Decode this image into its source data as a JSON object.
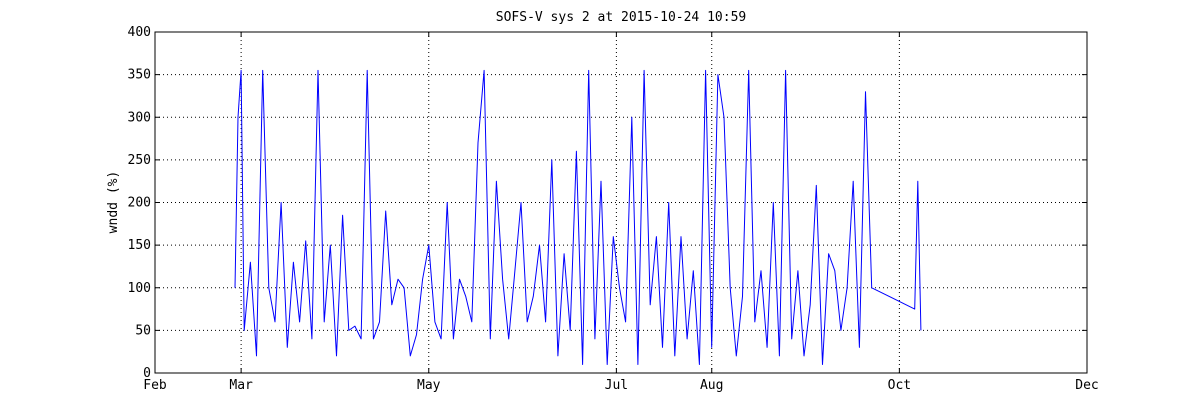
{
  "chart_data": {
    "type": "line",
    "title": "SOFS-V sys 2 at 2015-10-24 10:59",
    "xlabel": "",
    "ylabel": "wndd (%)",
    "ylim": [
      0,
      400
    ],
    "yticks": [
      0,
      50,
      100,
      150,
      200,
      250,
      300,
      350,
      400
    ],
    "xlim": [
      "2015-02-01",
      "2015-12-01"
    ],
    "xticks": [
      {
        "date": "2015-02-01",
        "label": "Feb"
      },
      {
        "date": "2015-03-01",
        "label": "Mar"
      },
      {
        "date": "2015-05-01",
        "label": "May"
      },
      {
        "date": "2015-07-01",
        "label": "Jul"
      },
      {
        "date": "2015-08-01",
        "label": "Aug"
      },
      {
        "date": "2015-10-01",
        "label": "Oct"
      },
      {
        "date": "2015-12-01",
        "label": "Dec"
      }
    ],
    "grid": true,
    "line_color": "#0000ff",
    "series": [
      {
        "name": "",
        "x": [
          "2015-02-27",
          "2015-02-28",
          "2015-03-01",
          "2015-03-02",
          "2015-03-04",
          "2015-03-06",
          "2015-03-08",
          "2015-03-10",
          "2015-03-12",
          "2015-03-14",
          "2015-03-16",
          "2015-03-18",
          "2015-03-20",
          "2015-03-22",
          "2015-03-24",
          "2015-03-26",
          "2015-03-28",
          "2015-03-30",
          "2015-04-01",
          "2015-04-03",
          "2015-04-05",
          "2015-04-07",
          "2015-04-09",
          "2015-04-11",
          "2015-04-13",
          "2015-04-15",
          "2015-04-17",
          "2015-04-19",
          "2015-04-21",
          "2015-04-23",
          "2015-04-25",
          "2015-04-27",
          "2015-04-29",
          "2015-05-01",
          "2015-05-03",
          "2015-05-05",
          "2015-05-07",
          "2015-05-09",
          "2015-05-11",
          "2015-05-13",
          "2015-05-15",
          "2015-05-17",
          "2015-05-19",
          "2015-05-21",
          "2015-05-23",
          "2015-05-25",
          "2015-05-27",
          "2015-05-29",
          "2015-05-31",
          "2015-06-02",
          "2015-06-04",
          "2015-06-06",
          "2015-06-08",
          "2015-06-10",
          "2015-06-12",
          "2015-06-14",
          "2015-06-16",
          "2015-06-18",
          "2015-06-20",
          "2015-06-22",
          "2015-06-24",
          "2015-06-26",
          "2015-06-28",
          "2015-06-30",
          "2015-07-02",
          "2015-07-04",
          "2015-07-06",
          "2015-07-08",
          "2015-07-10",
          "2015-07-12",
          "2015-07-14",
          "2015-07-16",
          "2015-07-18",
          "2015-07-20",
          "2015-07-22",
          "2015-07-24",
          "2015-07-26",
          "2015-07-28",
          "2015-07-30",
          "2015-08-01",
          "2015-08-03",
          "2015-08-05",
          "2015-08-07",
          "2015-08-09",
          "2015-08-11",
          "2015-08-13",
          "2015-08-15",
          "2015-08-17",
          "2015-08-19",
          "2015-08-21",
          "2015-08-23",
          "2015-08-25",
          "2015-08-27",
          "2015-08-29",
          "2015-08-31",
          "2015-09-02",
          "2015-09-04",
          "2015-09-06",
          "2015-09-08",
          "2015-09-10",
          "2015-09-12",
          "2015-09-14",
          "2015-09-16",
          "2015-09-18",
          "2015-09-20",
          "2015-09-22",
          "2015-10-06",
          "2015-10-07",
          "2015-10-08"
        ],
        "y": [
          100,
          300,
          355,
          50,
          130,
          20,
          355,
          100,
          60,
          200,
          30,
          130,
          60,
          155,
          40,
          355,
          60,
          150,
          20,
          185,
          50,
          55,
          40,
          355,
          40,
          60,
          190,
          80,
          110,
          100,
          20,
          45,
          110,
          150,
          60,
          40,
          200,
          40,
          110,
          90,
          60,
          270,
          355,
          40,
          225,
          110,
          40,
          120,
          200,
          60,
          90,
          150,
          60,
          250,
          20,
          140,
          50,
          260,
          10,
          355,
          40,
          225,
          10,
          160,
          100,
          60,
          300,
          10,
          355,
          80,
          160,
          30,
          200,
          20,
          160,
          40,
          120,
          10,
          355,
          30,
          350,
          300,
          100,
          20,
          90,
          355,
          60,
          120,
          30,
          200,
          20,
          355,
          40,
          120,
          20,
          80,
          220,
          10,
          140,
          120,
          50,
          100,
          225,
          30,
          330,
          100,
          75,
          225,
          50
        ]
      }
    ]
  }
}
